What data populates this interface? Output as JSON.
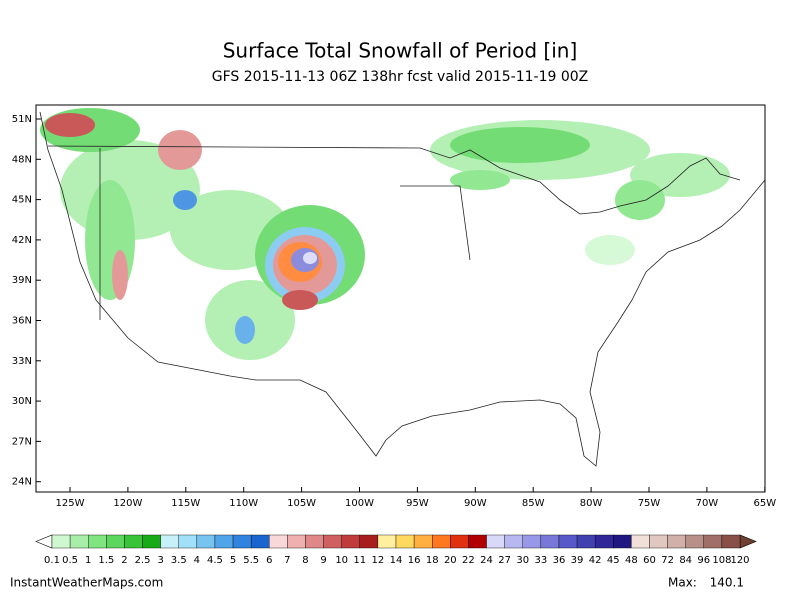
{
  "header": {
    "title": "Surface Total Snowfall of Period [in]",
    "subtitle": "GFS 2015-11-13 06Z 138hr fcst valid 2015-11-19 00Z"
  },
  "map": {
    "lat_labels": [
      "51N",
      "48N",
      "45N",
      "42N",
      "39N",
      "36N",
      "33N",
      "30N",
      "27N",
      "24N"
    ],
    "lon_labels": [
      "125W",
      "120W",
      "115W",
      "110W",
      "105W",
      "100W",
      "95W",
      "90W",
      "85W",
      "80W",
      "75W",
      "70W",
      "65W"
    ]
  },
  "colorbar": {
    "labels": [
      0.1,
      0.5,
      1,
      1.5,
      2,
      2.5,
      3,
      3.5,
      4,
      4.5,
      5,
      5.5,
      6,
      7,
      8,
      9,
      10,
      11,
      12,
      14,
      16,
      18,
      20,
      22,
      24,
      27,
      30,
      33,
      36,
      39,
      42,
      45,
      48,
      60,
      72,
      84,
      96,
      108,
      120
    ],
    "colors": [
      "#d0f8d0",
      "#a8eea8",
      "#80e480",
      "#5cd65c",
      "#38c438",
      "#18aa18",
      "#c8f0f8",
      "#a0e0f8",
      "#78c4f0",
      "#50a4e8",
      "#3084e0",
      "#1a64d0",
      "#f8d8d8",
      "#f0b0b0",
      "#e08888",
      "#d06060",
      "#c03c3c",
      "#a81e1e",
      "#fff0a0",
      "#ffd860",
      "#ffb040",
      "#ff7820",
      "#e03010",
      "#b00000",
      "#d8d8f8",
      "#b8b8f0",
      "#9898e8",
      "#7878d8",
      "#5858c8",
      "#4040b0",
      "#302898",
      "#201880",
      "#f0e0d8",
      "#e0c8c0",
      "#d0b0a8",
      "#b89088",
      "#a07068",
      "#885048"
    ],
    "under_color": "#ffffff",
    "over_color": "#704030"
  },
  "footer": {
    "site": "InstantWeatherMaps.com",
    "max_label": "Max:",
    "max_value": 140.1
  }
}
